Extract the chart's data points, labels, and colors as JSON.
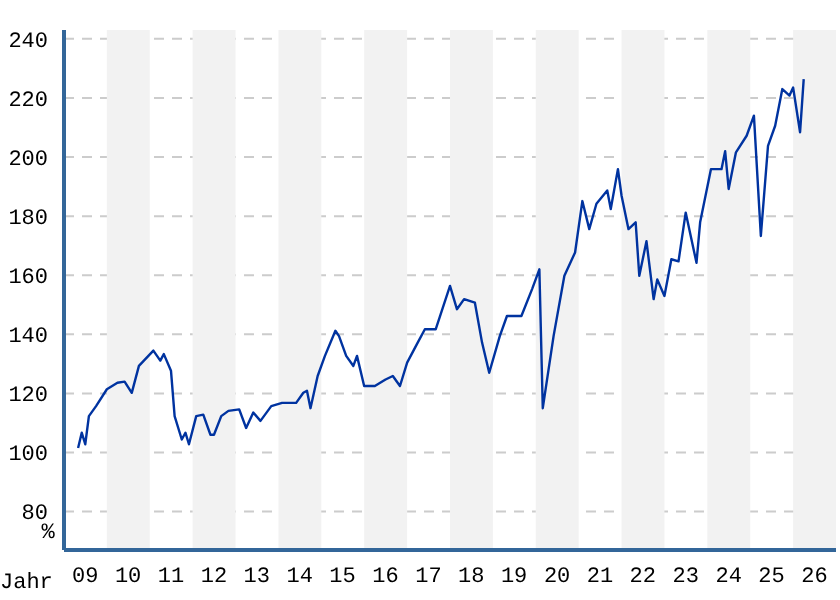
{
  "chart_data": {
    "type": "line",
    "xlabel": "Jahr",
    "ylabel": "%",
    "x": [
      "2009-05",
      "2009-06",
      "2009-07",
      "2009-08",
      "2009-10",
      "2010-01",
      "2010-04",
      "2010-06",
      "2010-08",
      "2010-10",
      "2011-02",
      "2011-04",
      "2011-05",
      "2011-07",
      "2011-08",
      "2011-10",
      "2011-11",
      "2011-12",
      "2012-02",
      "2012-04",
      "2012-06",
      "2012-07",
      "2012-09",
      "2012-11",
      "2013-02",
      "2013-04",
      "2013-06",
      "2013-08",
      "2013-11",
      "2014-02",
      "2014-06",
      "2014-08",
      "2014-09",
      "2014-10",
      "2014-12",
      "2015-02",
      "2015-05",
      "2015-06",
      "2015-08",
      "2015-10",
      "2015-11",
      "2016-01",
      "2016-04",
      "2016-07",
      "2016-09",
      "2016-11",
      "2017-01",
      "2017-04",
      "2017-06",
      "2017-09",
      "2018-01",
      "2018-03",
      "2018-05",
      "2018-08",
      "2018-10",
      "2018-12",
      "2019-03",
      "2019-05",
      "2019-09",
      "2019-12",
      "2020-02",
      "2020-03",
      "2020-06",
      "2020-09",
      "2020-12",
      "2021-02",
      "2021-04",
      "2021-06",
      "2021-09",
      "2021-10",
      "2021-12",
      "2022-01",
      "2022-03",
      "2022-05",
      "2022-06",
      "2022-08",
      "2022-10",
      "2022-11",
      "2023-01",
      "2023-03",
      "2023-05",
      "2023-07",
      "2023-10",
      "2023-11",
      "2024-02",
      "2024-05",
      "2024-06",
      "2024-07",
      "2024-09",
      "2024-12",
      "2025-02",
      "2025-04",
      "2025-06",
      "2025-08",
      "2025-10",
      "2025-12",
      "2026-01",
      "2026-03",
      "2026-04"
    ],
    "series": [
      {
        "color": "#0033a0",
        "values": [
          101.5,
          106.7,
          102.8,
          112.3,
          115.7,
          121.4,
          123.6,
          124,
          120.2,
          129.3,
          134.5,
          131.1,
          133.3,
          127.7,
          112.3,
          104.4,
          106.7,
          102.8,
          112.3,
          112.8,
          106,
          106,
          112.3,
          114.1,
          114.6,
          108.3,
          113.5,
          110.7,
          115.7,
          116.8,
          116.8,
          120.2,
          120.9,
          115,
          125.9,
          132.7,
          141.2,
          139.4,
          132.7,
          129.3,
          132.7,
          122.5,
          122.5,
          124.7,
          125.9,
          122.5,
          130.4,
          137.2,
          141.7,
          141.7,
          156.4,
          148.5,
          151.9,
          150.7,
          137.2,
          127,
          139.4,
          146.2,
          146.2,
          155.3,
          162,
          115,
          139.4,
          159.8,
          167.7,
          185.1,
          175.6,
          184.2,
          188.7,
          182.4,
          195.9,
          186.9,
          175.6,
          177.9,
          159.8,
          171.5,
          151.9,
          158.6,
          153,
          165.4,
          164.7,
          181.2,
          164.2,
          177.9,
          195.9,
          195.9,
          202,
          189.2,
          201.6,
          207.2,
          214,
          173.3,
          203.8,
          210.6,
          223,
          220.8,
          223.5,
          208.4,
          226.4
        ]
      }
    ],
    "xlim": [
      "2009-01-01",
      "2027-01-01"
    ],
    "xticks": [
      {
        "value": "2009-07-01",
        "label": "09"
      },
      {
        "value": "2010-07-01",
        "label": "10"
      },
      {
        "value": "2011-07-01",
        "label": "11"
      },
      {
        "value": "2012-07-01",
        "label": "12"
      },
      {
        "value": "2013-07-01",
        "label": "13"
      },
      {
        "value": "2014-07-01",
        "label": "14"
      },
      {
        "value": "2015-07-01",
        "label": "15"
      },
      {
        "value": "2016-07-01",
        "label": "16"
      },
      {
        "value": "2017-07-01",
        "label": "17"
      },
      {
        "value": "2018-07-01",
        "label": "18"
      },
      {
        "value": "2019-07-01",
        "label": "19"
      },
      {
        "value": "2020-07-01",
        "label": "20"
      },
      {
        "value": "2021-07-01",
        "label": "21"
      },
      {
        "value": "2022-07-01",
        "label": "22"
      },
      {
        "value": "2023-07-01",
        "label": "23"
      },
      {
        "value": "2024-07-01",
        "label": "24"
      },
      {
        "value": "2025-07-01",
        "label": "25"
      },
      {
        "value": "2026-07-01",
        "label": "26"
      }
    ],
    "ylim": [
      67,
      243
    ],
    "yticks": [
      80,
      100,
      120,
      140,
      160,
      180,
      200,
      220,
      240
    ],
    "bands": [
      {
        "axis": "x",
        "from": "2010-01-01",
        "to": "2011-01-01",
        "color": "#f2f2f2"
      },
      {
        "axis": "x",
        "from": "2012-01-01",
        "to": "2013-01-01",
        "color": "#f2f2f2"
      },
      {
        "axis": "x",
        "from": "2014-01-01",
        "to": "2015-01-01",
        "color": "#f2f2f2"
      },
      {
        "axis": "x",
        "from": "2016-01-01",
        "to": "2017-01-01",
        "color": "#f2f2f2"
      },
      {
        "axis": "x",
        "from": "2018-01-01",
        "to": "2019-01-01",
        "color": "#f2f2f2"
      },
      {
        "axis": "x",
        "from": "2020-01-01",
        "to": "2021-01-01",
        "color": "#f2f2f2"
      },
      {
        "axis": "x",
        "from": "2022-01-01",
        "to": "2023-01-01",
        "color": "#f2f2f2"
      },
      {
        "axis": "x",
        "from": "2024-01-01",
        "to": "2025-01-01",
        "color": "#f2f2f2"
      },
      {
        "axis": "x",
        "from": "2026-01-01",
        "to": "2027-01-01",
        "color": "#f2f2f2"
      }
    ],
    "grid": "y",
    "marker": "none",
    "line_style": "solid"
  }
}
